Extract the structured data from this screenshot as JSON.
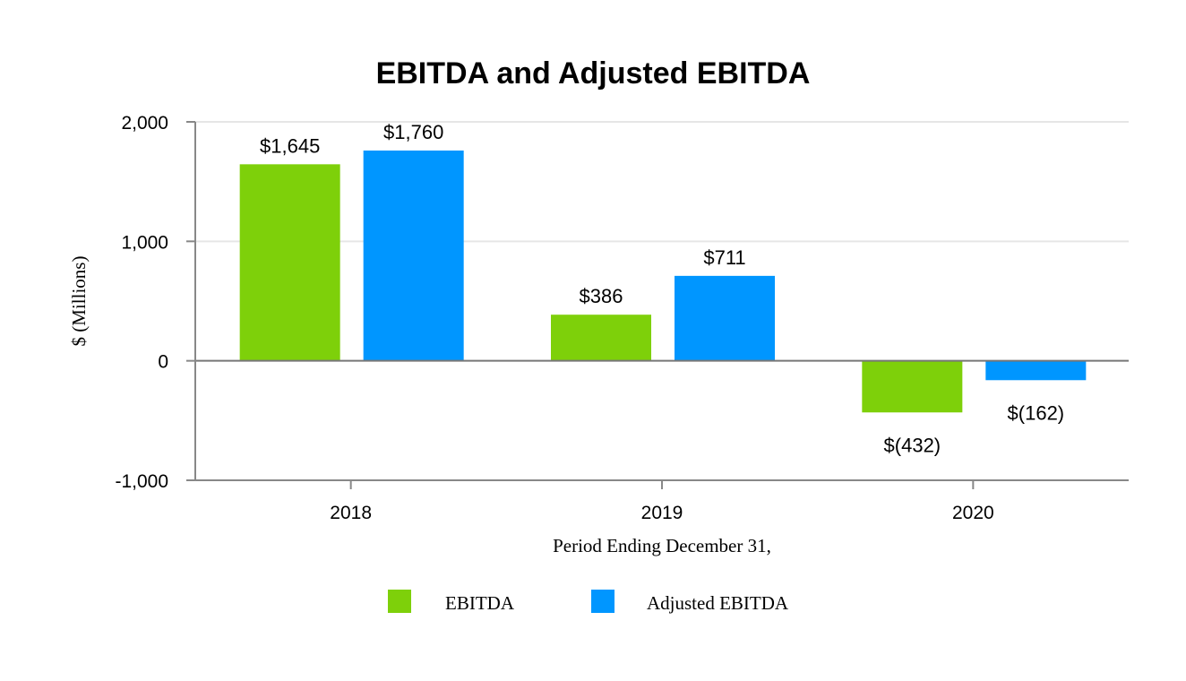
{
  "chart_data": {
    "type": "bar",
    "title": "EBITDA and Adjusted EBITDA",
    "xlabel": "Period Ending December 31,",
    "ylabel": "$ (Millions)",
    "categories": [
      "2018",
      "2019",
      "2020"
    ],
    "series": [
      {
        "name": "EBITDA",
        "values": [
          1645,
          386,
          -432
        ],
        "labels": [
          "$1,645",
          "$386",
          "$(432)"
        ],
        "color": "#7ed00a"
      },
      {
        "name": "Adjusted EBITDA",
        "values": [
          1760,
          711,
          -162
        ],
        "labels": [
          "$1,760",
          "$711",
          "$(162)"
        ],
        "color": "#0096ff"
      }
    ],
    "ylim": [
      -1000,
      2000
    ],
    "yticks": [
      -1000,
      0,
      1000,
      2000
    ],
    "ytick_labels": [
      "-1,000",
      "0",
      "1,000",
      "2,000"
    ],
    "grid": true,
    "legend_position": "bottom"
  }
}
